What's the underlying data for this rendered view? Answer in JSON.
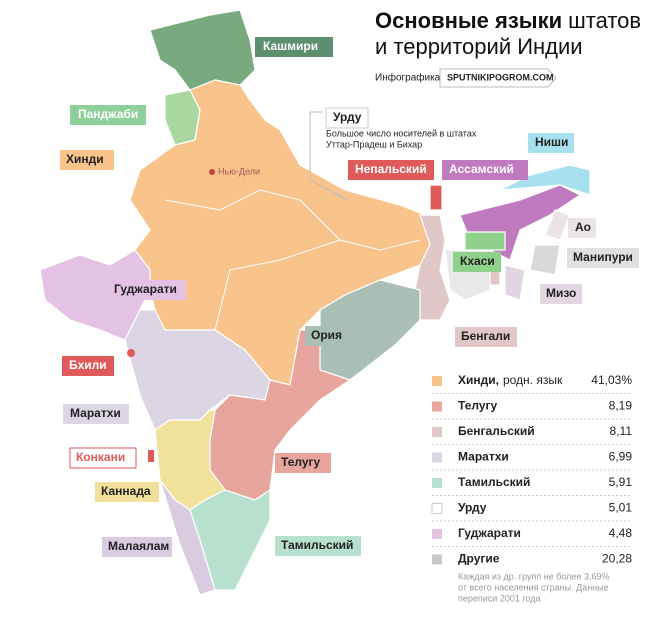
{
  "header": {
    "title_bold": "Основные языки",
    "title_rest": "штатов",
    "title_line2": "и территорий Индии",
    "credit_label": "Инфографика:",
    "credit_link": "SPUTNIKIPOGROM.COM"
  },
  "map": {
    "city": "Нью-Дели",
    "labels": [
      "Кашмири",
      "Панджаби",
      "Хинди",
      "Урду",
      "Непальский",
      "Ассамский",
      "Ниши",
      "Ао",
      "Манипури",
      "Кхаси",
      "Мизо",
      "Бенгали",
      "Гуджарати",
      "Ория",
      "Бхили",
      "Маратхи",
      "Конкани",
      "Каннада",
      "Телугу",
      "Малаялам",
      "Тамильский"
    ],
    "urdu_note": [
      "Большое число носителей в штатах",
      "Уттар-Прадеш и Бихар"
    ]
  },
  "legend": {
    "rows": [
      {
        "name": "Хинди,",
        "note": "родн. язык",
        "value": "41,03%",
        "color": "#f9c48b"
      },
      {
        "name": "Телугу",
        "value": "8,19",
        "color": "#e8a59e"
      },
      {
        "name": "Бенгальский",
        "value": "8,11",
        "color": "#e0c8c8"
      },
      {
        "name": "Маратхи",
        "value": "6,99",
        "color": "#dcd6e4"
      },
      {
        "name": "Тамильский",
        "value": "5,91",
        "color": "#b8e0cf"
      },
      {
        "name": "Урду",
        "value": "5,01",
        "color": "#ffffff"
      },
      {
        "name": "Гуджарати",
        "value": "4,48",
        "color": "#e3c2e3"
      },
      {
        "name": "Другие",
        "value": "20,28",
        "color": "#c8c8c8"
      }
    ],
    "footnote": [
      "Каждая из др. групп не более 3,69%",
      "от всего населения страны. Данные",
      "переписи 2001 года"
    ]
  }
}
